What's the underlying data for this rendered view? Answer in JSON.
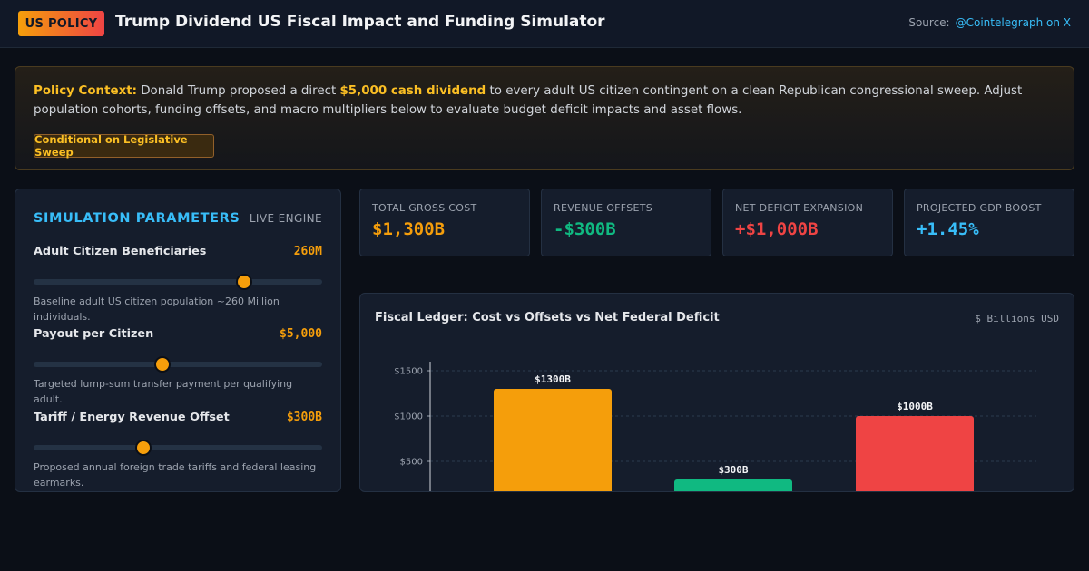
{
  "header": {
    "badge": "US POLICY",
    "title": "Trump Dividend US Fiscal Impact and Funding Simulator",
    "source_label": "Source:",
    "source_link": "@Cointelegraph on X"
  },
  "context": {
    "lead": "Policy Context:",
    "text_1": " Donald Trump proposed a direct ",
    "highlight": "$5,000 cash dividend",
    "text_2": " to every adult US citizen contingent on a clean Republican congressional sweep. Adjust population cohorts, funding offsets, and macro multipliers below to evaluate budget deficit impacts and asset flows.",
    "tag": "Conditional on Legislative Sweep"
  },
  "params": {
    "title": "SIMULATION PARAMETERS",
    "status": "LIVE ENGINE",
    "items": [
      {
        "label": "Adult Citizen Beneficiaries",
        "value": "260M",
        "level": 0.73,
        "desc": "Baseline adult US citizen population ~260 Million individuals."
      },
      {
        "label": "Payout per Citizen",
        "value": "$5,000",
        "level": 0.445,
        "desc": "Targeted lump-sum transfer payment per qualifying adult."
      },
      {
        "label": "Tariff / Energy Revenue Offset",
        "value": "$300B",
        "level": 0.38,
        "desc": "Proposed annual foreign trade tariffs and federal leasing earmarks."
      }
    ]
  },
  "stats": [
    {
      "label": "TOTAL GROSS COST",
      "value": "$1,300B",
      "color": "#f59e0b"
    },
    {
      "label": "REVENUE OFFSETS",
      "value": "-$300B",
      "color": "#10b981"
    },
    {
      "label": "NET DEFICIT EXPANSION",
      "value": "+$1,000B",
      "color": "#ef4444"
    },
    {
      "label": "PROJECTED GDP BOOST",
      "value": "+1.45%",
      "color": "#38bdf8"
    }
  ],
  "chart_data": {
    "type": "bar",
    "title": "Fiscal Ledger: Cost vs Offsets vs Net Federal Deficit",
    "unit_label": "$ Billions USD",
    "values": [
      1300,
      300,
      1000
    ],
    "data_labels": [
      "$1300B",
      "$300B",
      "$1000B"
    ],
    "colors": [
      "#f59e0b",
      "#10b981",
      "#ef4444"
    ],
    "yticks": [
      500,
      1000,
      1500
    ],
    "ytick_labels": [
      "$500",
      "$1000",
      "$1500"
    ],
    "ylim": [
      0,
      1500
    ],
    "grid": true
  }
}
